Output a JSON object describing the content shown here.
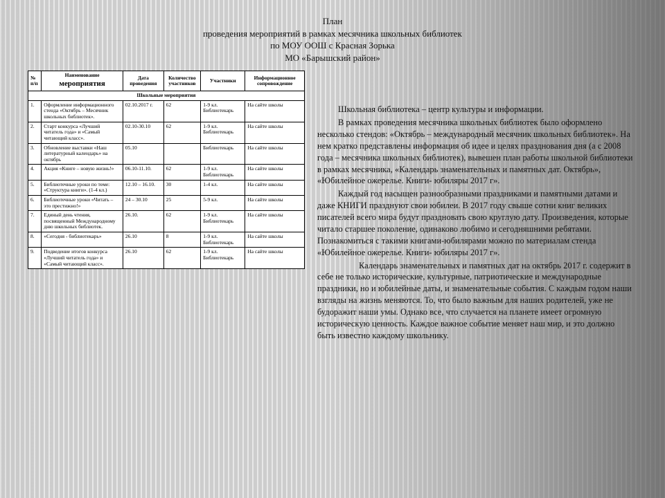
{
  "title": {
    "l1": "План",
    "l2": "проведения мероприятий в рамках месячника школьных библиотек",
    "l3": "по МОУ ООШ с Красная Зорька",
    "l4": "МО «Барышский район»"
  },
  "table": {
    "headers": {
      "num": "№ п/п",
      "name_top": "Наименование",
      "name_bottom": "мероприятия",
      "date": "Дата проведения",
      "qty": "Количество участников",
      "part": "Участники",
      "info": "Информационное сопровождение"
    },
    "section": "Школьные мероприятия",
    "rows": [
      {
        "n": "1.",
        "name": "Оформление информационного стенда «Октябрь – Месячник школьных библиотек».",
        "date": "02.10.2017 г.",
        "qty": "62",
        "part": "1-9 кл. Библиотекарь",
        "info": "На сайте школы"
      },
      {
        "n": "2.",
        "name": "Старт конкурса «Лучший читатель года» и «Самый читающий класс».",
        "date": "02.10-30.10",
        "qty": "62",
        "part": "1-9 кл. Библиотекарь",
        "info": "На сайте школы"
      },
      {
        "n": "3.",
        "name": "Обновление выставки «Наш литературный календарь» на октябрь",
        "date": "05.10",
        "qty": "",
        "part": "Библиотекарь",
        "info": "На сайте школы"
      },
      {
        "n": "4.",
        "name": "Акция «Книге – новую жизнь!»",
        "date": "06.10-11.10.",
        "qty": "62",
        "part": "1-9 кл. Библиотекарь",
        "info": "На сайте школы"
      },
      {
        "n": "5.",
        "name": "Библиотечные уроки по теме: «Структура книги». (1-4 кл.)",
        "date": "12.10 – 16.10.",
        "qty": "30",
        "part": "1-4 кл.",
        "info": "На сайте школы"
      },
      {
        "n": "6.",
        "name": "Библиотечные уроки «Читать – это престижно!»",
        "date": "24 – 30.10",
        "qty": "25",
        "part": "5-9 кл.",
        "info": "На сайте школы"
      },
      {
        "n": "7.",
        "name": "Единый день чтения, посвященный Международному дню школьных библиотек.",
        "date": "26.10.",
        "qty": "62",
        "part": "1-9 кл. Библиотекарь",
        "info": "На сайте школы"
      },
      {
        "n": "8.",
        "name": "«Сегодня - библиотекарь»",
        "date": "26.10",
        "qty": "8",
        "part": "1-9 кл. Библиотекарь",
        "info": "На сайте школы"
      },
      {
        "n": "9.",
        "name": "Подведение итогов конкурса «Лучший читатель года» и «Самый читающий класс».",
        "date": "26.10",
        "qty": "62",
        "part": "1-9 кл. Библиотекарь",
        "info": "На сайте школы"
      }
    ]
  },
  "essay": {
    "p1": "Школьная библиотека – центр культуры и информации.",
    "p2": "В рамках проведения месячника школьных библиотек было оформлено несколько стендов: «Октябрь – международный месячник школьных библиотек». На нем кратко представлены информация об идее и целях празднования дня (а с 2008 года – месячника школьных библиотек), вывешен план работы школьной библиотеки в рамках месячника, «Календарь знаменательных и памятных дат. Октябрь», «Юбилейное ожерелье. Книги- юбиляры 2017 г».",
    "p3": "Каждый год насыщен разнообразными праздниками и памятными датами и даже КНИГИ празднуют свои юбилеи. В 2017 году свыше сотни книг великих писателей всего мира будут праздновать свою круглую дату. Произведения, которые читало старшее поколение, одинаково любимо и сегодняшними ребятами. Познакомиться с такими книгами-юбилярами можно по материалам стенда «Юбилейное ожерелье. Книги- юбиляры 2017 г».",
    "p4a": "Календарь знаменательных и памятных дат на",
    "p4b": "октябрь 2017 г.  содержит в себе не только исторические, культурные, патриотические и международные праздники, но и юбилейные даты, и знаменательные события. С каждым годом наши взгляды на жизнь меняются. То, что было важным для наших родителей, уже не будоражит наши умы. Однако все, что случается на планете имеет огромную историческую ценность. Каждое важное событие меняет наш мир, и это должно быть известно каждому школьнику."
  },
  "colors": {
    "text": "#111111",
    "table_border": "#000000",
    "table_bg": "#ffffff"
  },
  "fonts": {
    "body_family": "Times New Roman",
    "title_size_pt": 10,
    "body_size_pt": 9,
    "table_size_pt": 6
  }
}
